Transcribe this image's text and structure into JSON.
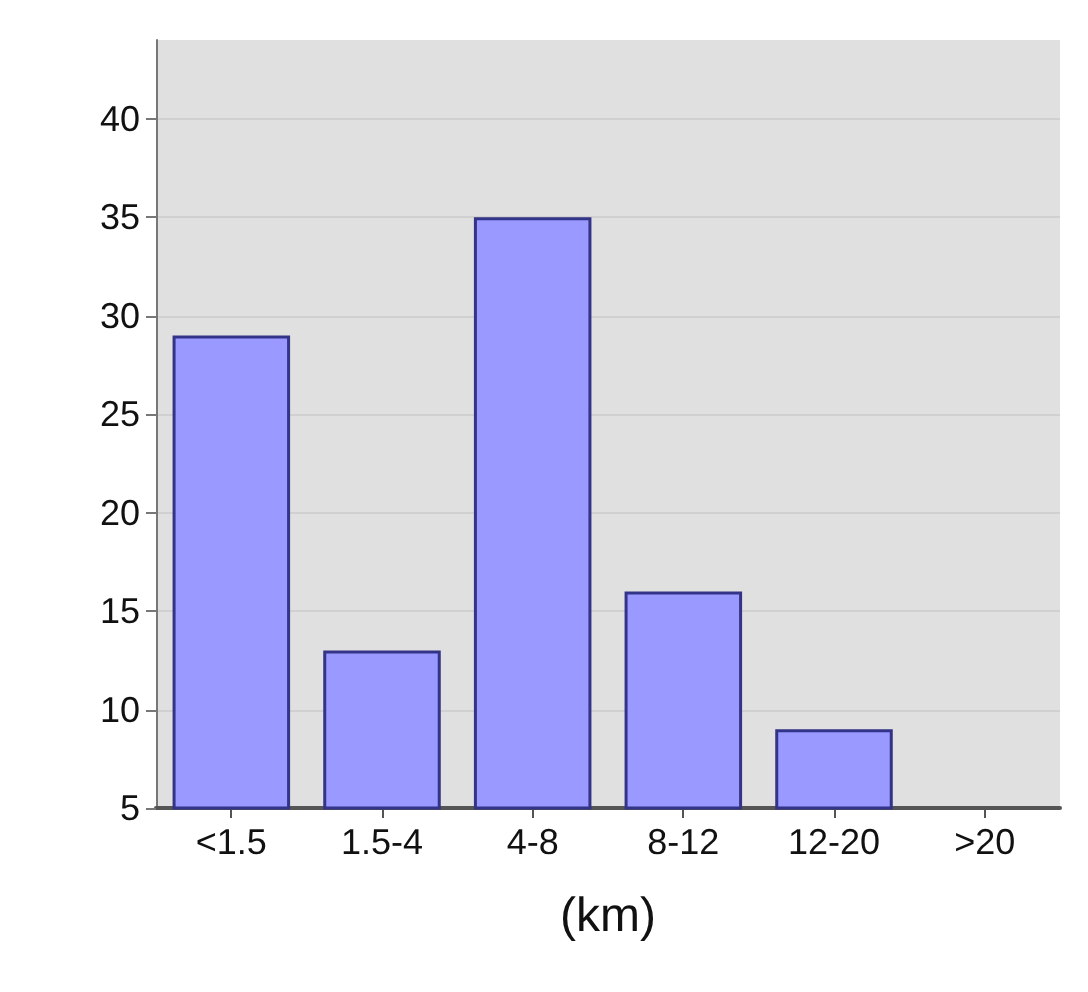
{
  "chart_data": {
    "type": "bar",
    "xlabel": "(km)",
    "categories": [
      "<1.5",
      "1.5-4",
      "4-8",
      "8-12",
      "12-20",
      ">20"
    ],
    "values": [
      29,
      13,
      35,
      16,
      9,
      null
    ],
    "color": "#9999ff",
    "ylim": [
      5,
      44
    ],
    "yticks": [
      5,
      10,
      15,
      20,
      25,
      30,
      35,
      40
    ],
    "grid": "y"
  }
}
